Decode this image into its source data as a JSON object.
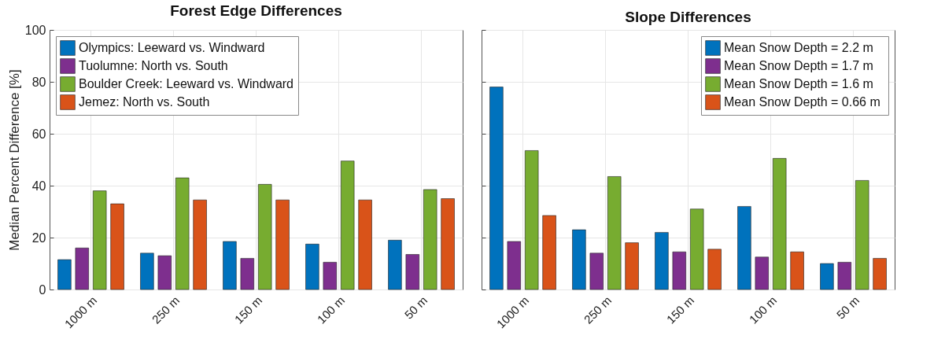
{
  "chart_data": [
    {
      "type": "bar",
      "title": "Forest Edge Differences",
      "ylabel": "Median Percent Difference [%]",
      "categories": [
        "1000 m",
        "250 m",
        "150 m",
        "100 m",
        "50 m"
      ],
      "ylim": [
        0,
        100
      ],
      "yticks": [
        0,
        20,
        40,
        60,
        80,
        100
      ],
      "grid": true,
      "legend": "top left",
      "series": [
        {
          "name": "Olympics: Leeward vs. Windward",
          "color": "#0072bd",
          "values": [
            11.5,
            14,
            18.5,
            17.5,
            19
          ]
        },
        {
          "name": "Tuolumne: North vs. South",
          "color": "#7e2f8e",
          "values": [
            16,
            13,
            12,
            10.5,
            13.5
          ]
        },
        {
          "name": "Boulder Creek: Leeward vs. Windward",
          "color": "#77ac30",
          "values": [
            38,
            43,
            40.5,
            49.5,
            38.5
          ]
        },
        {
          "name": "Jemez: North vs. South",
          "color": "#d95319",
          "values": [
            33,
            34.5,
            34.5,
            34.5,
            35
          ]
        }
      ]
    },
    {
      "type": "bar",
      "title": "Slope Differences",
      "categories": [
        "1000 m",
        "250 m",
        "150 m",
        "100 m",
        "50 m"
      ],
      "ylim": [
        0,
        100
      ],
      "yticks": [
        0,
        20,
        40,
        60,
        80,
        100
      ],
      "grid": true,
      "legend": "top right",
      "tick_labels": "x",
      "series": [
        {
          "name": "Mean Snow Depth =  2.2 m",
          "color": "#0072bd",
          "values": [
            78,
            23,
            22,
            32,
            10
          ]
        },
        {
          "name": "Mean Snow Depth =  1.7 m",
          "color": "#7e2f8e",
          "values": [
            18.5,
            14,
            14.5,
            12.5,
            10.5
          ]
        },
        {
          "name": "Mean Snow Depth =  1.6 m",
          "color": "#77ac30",
          "values": [
            53.5,
            43.5,
            31,
            50.5,
            42
          ]
        },
        {
          "name": "Mean Snow Depth =  0.66 m",
          "color": "#d95319",
          "values": [
            28.5,
            18,
            15.5,
            14.5,
            12
          ]
        }
      ]
    }
  ]
}
